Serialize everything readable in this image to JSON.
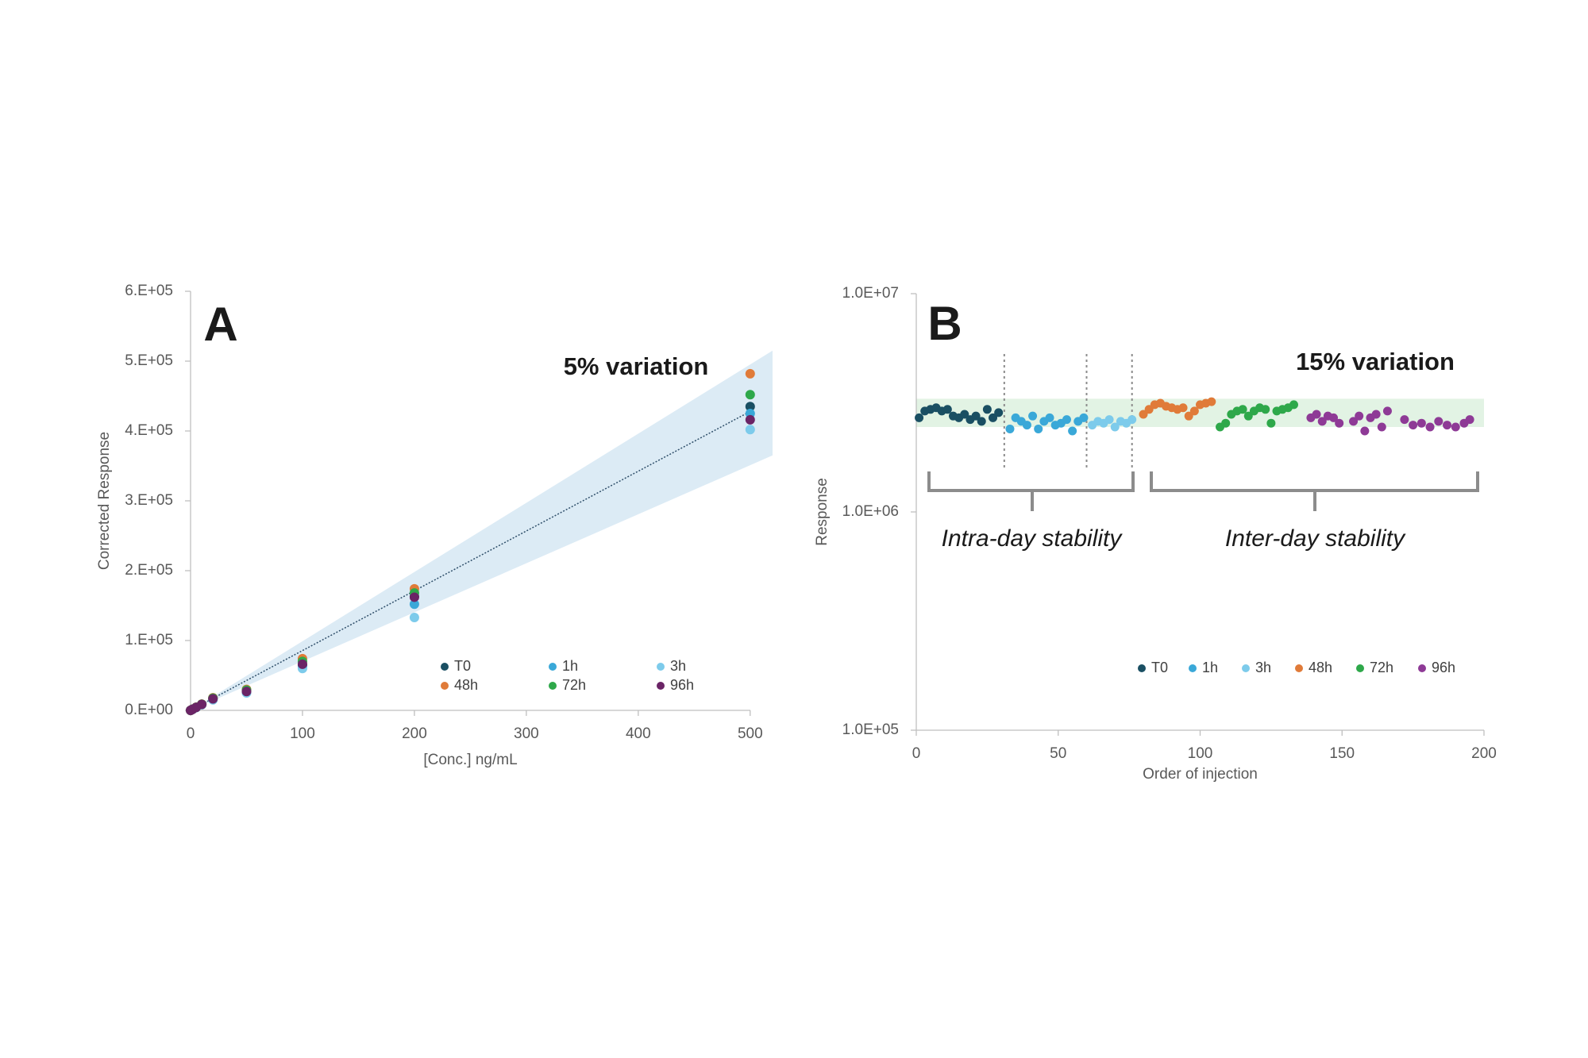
{
  "chart_data": [
    {
      "type": "scatter",
      "annotation_letter": "A",
      "annotation": "5% variation",
      "x_label": "[Conc.] ng/mL",
      "y_label": "Corrected Response",
      "xlim": [
        0,
        520
      ],
      "xticks": [
        0,
        100,
        200,
        300,
        400,
        500
      ],
      "ylim": [
        0,
        600000
      ],
      "yticks": [
        {
          "value": 0,
          "label": "0.E+00"
        },
        {
          "value": 100000,
          "label": "1.E+05"
        },
        {
          "value": 200000,
          "label": "2.E+05"
        },
        {
          "value": 300000,
          "label": "3.E+05"
        },
        {
          "value": 400000,
          "label": "4.E+05"
        },
        {
          "value": 500000,
          "label": "5.E+05"
        },
        {
          "value": 600000,
          "label": "6.E+05"
        }
      ],
      "band": {
        "color": "#dcebf5",
        "x": [
          0,
          520
        ],
        "upper": [
          0,
          515000
        ],
        "lower": [
          0,
          365000
        ]
      },
      "trendline": {
        "color": "#2f4f6a",
        "x": [
          0,
          500
        ],
        "y": [
          0,
          428000
        ]
      },
      "x": [
        0,
        1,
        2,
        5,
        10,
        20,
        50,
        100,
        200,
        500
      ],
      "series": [
        {
          "name": "T0",
          "color": "#1a4f63",
          "values": [
            0,
            900,
            1800,
            4300,
            8600,
            17000,
            28000,
            65000,
            163000,
            435000
          ]
        },
        {
          "name": "1h",
          "color": "#3aa8d8",
          "values": [
            0,
            850,
            1700,
            4100,
            8200,
            16000,
            26000,
            62000,
            152000,
            425000
          ]
        },
        {
          "name": "3h",
          "color": "#7dcbeb",
          "values": [
            0,
            800,
            1600,
            4000,
            8000,
            15000,
            25000,
            60000,
            133000,
            402000
          ]
        },
        {
          "name": "48h",
          "color": "#e07b39",
          "values": [
            0,
            950,
            1900,
            4500,
            9000,
            18000,
            30000,
            74000,
            174000,
            482000
          ]
        },
        {
          "name": "72h",
          "color": "#2ea84a",
          "values": [
            0,
            920,
            1850,
            4400,
            8800,
            17500,
            29000,
            70000,
            168000,
            452000
          ]
        },
        {
          "name": "96h",
          "color": "#6b2466",
          "values": [
            0,
            880,
            1750,
            4200,
            8500,
            16500,
            27000,
            66000,
            162000,
            416000
          ]
        }
      ]
    },
    {
      "type": "scatter",
      "yscale": "log",
      "annotation_letter": "B",
      "annotation": "15% variation",
      "x_label": "Order of injection",
      "y_label": "Response",
      "intra_label": "Intra-day stability",
      "inter_label": "Inter-day stability",
      "xlim": [
        0,
        200
      ],
      "xticks": [
        0,
        50,
        100,
        150,
        200
      ],
      "ylim": [
        100000,
        10000000
      ],
      "yticks": [
        {
          "value": 100000,
          "label": "1.0E+05"
        },
        {
          "value": 1000000,
          "label": "1.0E+06"
        },
        {
          "value": 10000000,
          "label": "1.0E+07"
        }
      ],
      "band": {
        "color": "#e2f3e4",
        "low": 2450000,
        "high": 3300000
      },
      "dividers": [
        31,
        60,
        76
      ],
      "series": [
        {
          "name": "T0",
          "color": "#1a4f63",
          "x": [
            1,
            3,
            5,
            7,
            9,
            11,
            13,
            15,
            17,
            19,
            21,
            23,
            25,
            27,
            29
          ],
          "values": [
            2700000,
            2900000,
            2950000,
            3000000,
            2900000,
            2950000,
            2750000,
            2700000,
            2800000,
            2650000,
            2750000,
            2600000,
            2950000,
            2700000,
            2850000
          ]
        },
        {
          "name": "1h",
          "color": "#3aa8d8",
          "x": [
            33,
            35,
            37,
            39,
            41,
            43,
            45,
            47,
            49,
            51,
            53,
            55,
            57,
            59
          ],
          "values": [
            2400000,
            2700000,
            2600000,
            2500000,
            2750000,
            2400000,
            2600000,
            2700000,
            2500000,
            2550000,
            2650000,
            2350000,
            2600000,
            2700000
          ]
        },
        {
          "name": "3h",
          "color": "#7dcbeb",
          "x": [
            62,
            64,
            66,
            68,
            70,
            72,
            74,
            76
          ],
          "values": [
            2500000,
            2600000,
            2550000,
            2650000,
            2450000,
            2600000,
            2550000,
            2650000
          ]
        },
        {
          "name": "48h",
          "color": "#e07b39",
          "x": [
            80,
            82,
            84,
            86,
            88,
            90,
            92,
            94,
            96,
            98,
            100,
            102,
            104
          ],
          "values": [
            2800000,
            2950000,
            3100000,
            3150000,
            3050000,
            3000000,
            2950000,
            3000000,
            2750000,
            2900000,
            3100000,
            3150000,
            3200000
          ]
        },
        {
          "name": "72h",
          "color": "#2ea84a",
          "x": [
            107,
            109,
            111,
            113,
            115,
            117,
            119,
            121,
            123,
            125,
            127,
            129,
            131,
            133
          ],
          "values": [
            2450000,
            2550000,
            2800000,
            2900000,
            2950000,
            2750000,
            2900000,
            3000000,
            2950000,
            2550000,
            2900000,
            2950000,
            3000000,
            3100000
          ]
        },
        {
          "name": "96h",
          "color": "#8e3a96",
          "x": [
            139,
            141,
            143,
            145,
            147,
            149,
            154,
            156,
            158,
            160,
            162,
            164,
            166,
            172,
            175,
            178,
            181,
            184,
            187,
            190,
            193,
            195
          ],
          "values": [
            2700000,
            2800000,
            2600000,
            2750000,
            2700000,
            2550000,
            2600000,
            2750000,
            2350000,
            2700000,
            2800000,
            2450000,
            2900000,
            2650000,
            2500000,
            2550000,
            2450000,
            2600000,
            2500000,
            2450000,
            2550000,
            2650000
          ]
        }
      ]
    }
  ]
}
